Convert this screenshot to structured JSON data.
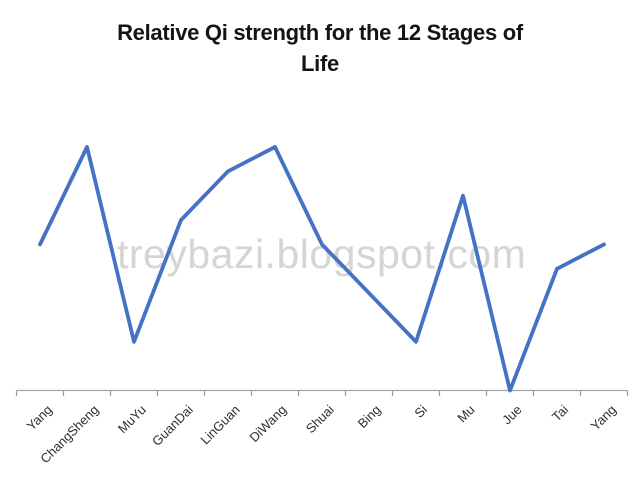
{
  "chart": {
    "title_lines": [
      "Relative Qi strength for the 12 Stages of",
      "Life"
    ],
    "title_full": "Relative Qi strength for the 12 Stages of Life",
    "watermark": "treybazi.blogspot.com",
    "colors": {
      "line": "#4472C4",
      "axis": "#a6a6a6",
      "tick": "#9b9b9b",
      "x_label": "#303030",
      "title": "#141414",
      "watermark": "#d5d5d5",
      "background": "#ffffff"
    }
  },
  "chart_data": {
    "type": "line",
    "title": "Relative Qi strength for the 12 Stages of Life",
    "categories": [
      "Yang",
      "ChangSheng",
      "MuYu",
      "GuanDai",
      "LinGuan",
      "DiWang",
      "Shuai",
      "Bing",
      "Si",
      "Mu",
      "Jue",
      "Tai",
      "Yang"
    ],
    "values": [
      60,
      100,
      20,
      70,
      90,
      100,
      60,
      40,
      20,
      80,
      0,
      50,
      60
    ],
    "xlabel": "",
    "ylabel": "",
    "ylim": [
      0,
      100
    ],
    "grid": false,
    "legend": false,
    "markers": false,
    "y_axis_visible": false,
    "x_label_rotation_deg": 45,
    "x_ticks": "category-boundaries"
  }
}
